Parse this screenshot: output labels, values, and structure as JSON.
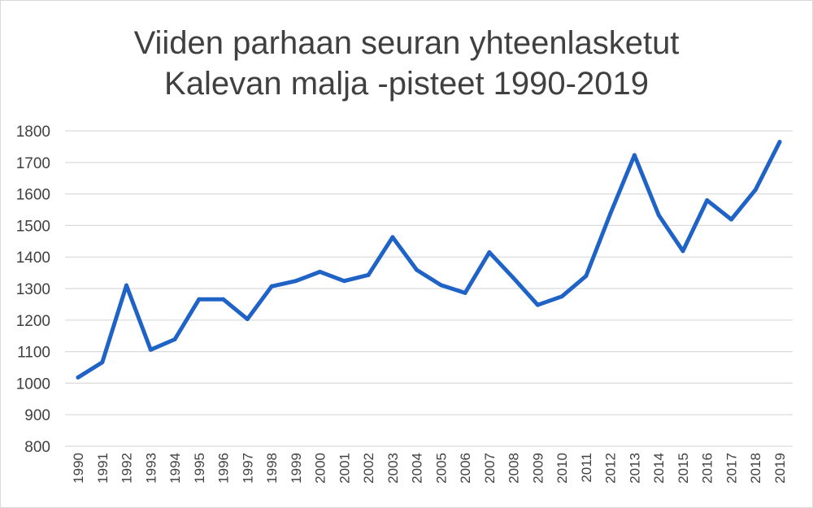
{
  "chart_data": {
    "type": "line",
    "title_lines": [
      "Viiden parhaan seuran yhteenlasketut",
      "Kalevan malja -pisteet 1990-2019"
    ],
    "xlabel": "",
    "ylabel": "",
    "ylim": [
      800,
      1800
    ],
    "yticks": [
      800,
      900,
      1000,
      1100,
      1200,
      1300,
      1400,
      1500,
      1600,
      1700,
      1800
    ],
    "grid": true,
    "legend": "none",
    "x": [
      "1990",
      "1991",
      "1992",
      "1993",
      "1994",
      "1995",
      "1996",
      "1997",
      "1998",
      "1999",
      "2000",
      "2001",
      "2002",
      "2003",
      "2004",
      "2005",
      "2006",
      "2007",
      "2008",
      "2009",
      "2010",
      "2011",
      "2012",
      "2013",
      "2014",
      "2015",
      "2016",
      "2017",
      "2018",
      "2019"
    ],
    "series": [
      {
        "color": "#1f63c6",
        "values": [
          1018,
          1066,
          1310,
          1106,
          1139,
          1266,
          1266,
          1203,
          1307,
          1324,
          1353,
          1324,
          1343,
          1463,
          1359,
          1311,
          1286,
          1415,
          1333,
          1248,
          1275,
          1340,
          1537,
          1723,
          1533,
          1419,
          1580,
          1519,
          1613,
          1765
        ]
      }
    ]
  }
}
